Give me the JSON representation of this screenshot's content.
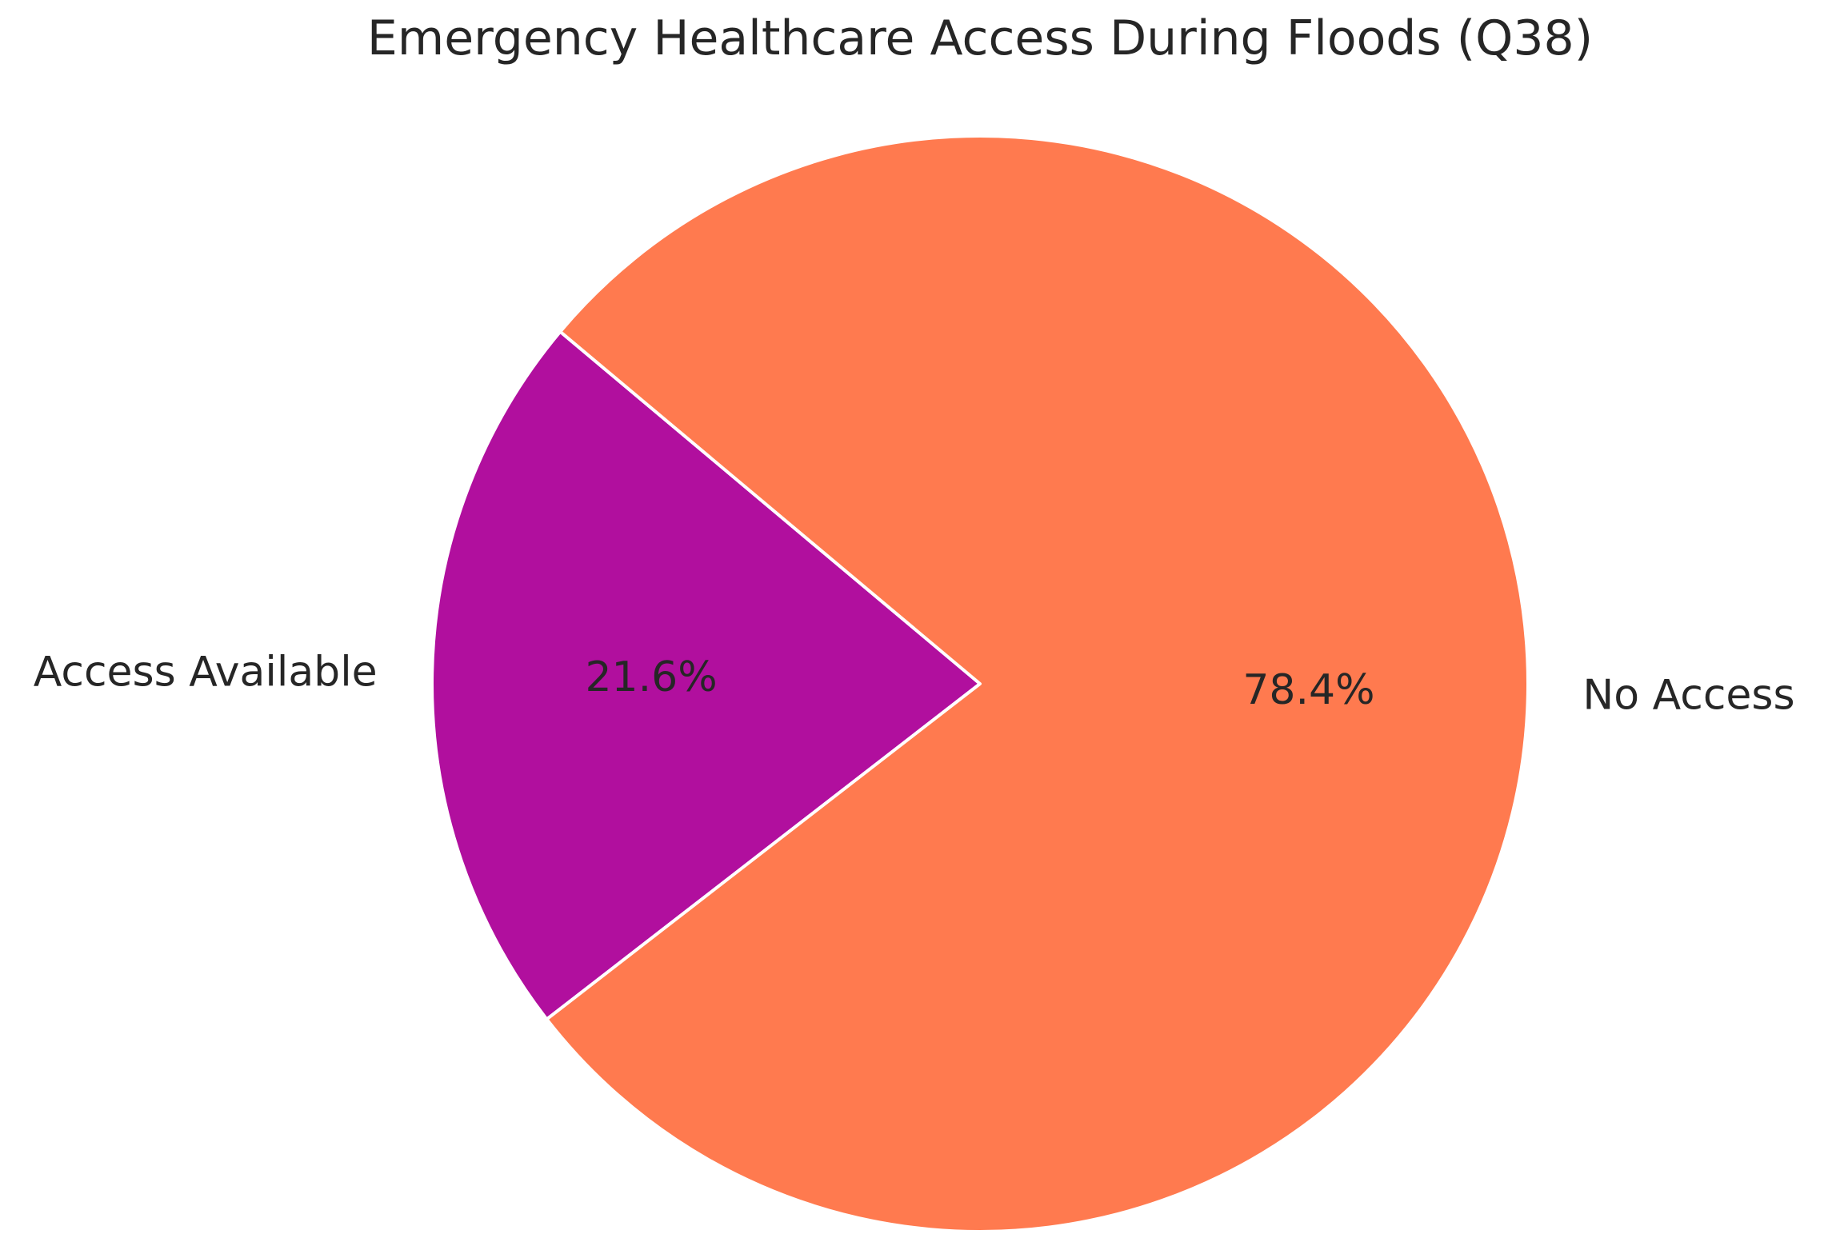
{
  "chart_data": {
    "type": "pie",
    "title": "Emergency Healthcare Access During Floods (Q38)",
    "slices": [
      {
        "label": "Access Available",
        "value": 21.6,
        "pct_label": "21.6%",
        "color": "#B10F9E"
      },
      {
        "label": "No Access",
        "value": 78.4,
        "pct_label": "78.4%",
        "color": "#FF7A4F"
      }
    ],
    "start_angle_deg": 140,
    "direction": "counterclockwise",
    "edge_color": "#ffffff",
    "legend": "none"
  }
}
